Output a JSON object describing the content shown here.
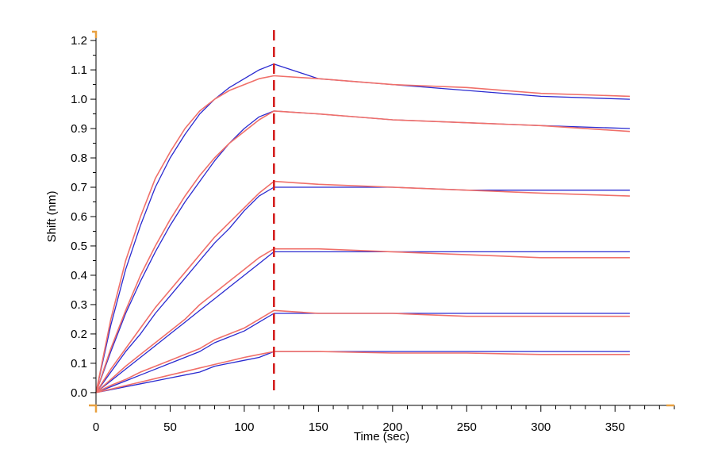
{
  "chart_data": {
    "type": "line",
    "title": "",
    "xlabel": "Time (sec)",
    "ylabel": "Shift (nm)",
    "xlim": [
      0,
      390
    ],
    "ylim": [
      -0.03,
      1.23
    ],
    "x_ticks": [
      0,
      50,
      100,
      150,
      200,
      250,
      300,
      350
    ],
    "y_ticks": [
      0.0,
      0.1,
      0.2,
      0.3,
      0.4,
      0.5,
      0.6,
      0.7,
      0.8,
      0.9,
      1.0,
      1.1,
      1.2
    ],
    "y_tick_labels": [
      "0.0",
      "0.1",
      "0.2",
      "0.3",
      "0.4",
      "0.5",
      "0.6",
      "0.7",
      "0.8",
      "0.9",
      "1.0",
      "1.1",
      "1.2"
    ],
    "grid": false,
    "legend": "none",
    "dissociation_start": 120,
    "colors": {
      "measured": "#2a2ad0",
      "fit": "#f0706a",
      "marker": "#d42020",
      "axis_corner": "#e8a040"
    },
    "series": [
      {
        "kind": "measured",
        "x": [
          0,
          10,
          20,
          30,
          40,
          50,
          60,
          70,
          80,
          90,
          100,
          110,
          120,
          150,
          200,
          250,
          300,
          360
        ],
        "y": [
          0,
          0.23,
          0.42,
          0.57,
          0.7,
          0.8,
          0.88,
          0.95,
          1.0,
          1.04,
          1.07,
          1.1,
          1.12,
          1.07,
          1.05,
          1.03,
          1.01,
          1.0
        ]
      },
      {
        "kind": "fit",
        "x": [
          0,
          10,
          20,
          30,
          40,
          50,
          60,
          70,
          80,
          90,
          100,
          110,
          120,
          150,
          200,
          250,
          300,
          360
        ],
        "y": [
          0,
          0.25,
          0.45,
          0.6,
          0.73,
          0.82,
          0.9,
          0.96,
          1.0,
          1.03,
          1.05,
          1.07,
          1.08,
          1.07,
          1.05,
          1.04,
          1.02,
          1.01
        ]
      },
      {
        "kind": "measured",
        "x": [
          0,
          10,
          20,
          30,
          40,
          50,
          60,
          70,
          80,
          90,
          100,
          110,
          120,
          150,
          200,
          250,
          300,
          360
        ],
        "y": [
          0,
          0.14,
          0.27,
          0.38,
          0.48,
          0.57,
          0.65,
          0.72,
          0.79,
          0.85,
          0.9,
          0.94,
          0.96,
          0.95,
          0.93,
          0.92,
          0.91,
          0.9
        ]
      },
      {
        "kind": "fit",
        "x": [
          0,
          10,
          20,
          30,
          40,
          50,
          60,
          70,
          80,
          90,
          100,
          110,
          120,
          150,
          200,
          250,
          300,
          360
        ],
        "y": [
          0,
          0.15,
          0.28,
          0.4,
          0.5,
          0.59,
          0.67,
          0.74,
          0.8,
          0.85,
          0.89,
          0.93,
          0.96,
          0.95,
          0.93,
          0.92,
          0.91,
          0.89
        ]
      },
      {
        "kind": "measured",
        "x": [
          0,
          10,
          20,
          30,
          40,
          50,
          60,
          70,
          80,
          90,
          100,
          110,
          120,
          150,
          200,
          250,
          300,
          360
        ],
        "y": [
          0,
          0.07,
          0.14,
          0.2,
          0.27,
          0.33,
          0.39,
          0.45,
          0.51,
          0.56,
          0.62,
          0.67,
          0.7,
          0.7,
          0.7,
          0.69,
          0.69,
          0.69
        ]
      },
      {
        "kind": "fit",
        "x": [
          0,
          10,
          20,
          30,
          40,
          50,
          60,
          70,
          80,
          90,
          100,
          110,
          120,
          150,
          200,
          250,
          300,
          360
        ],
        "y": [
          0,
          0.08,
          0.15,
          0.22,
          0.29,
          0.35,
          0.41,
          0.47,
          0.53,
          0.58,
          0.63,
          0.68,
          0.72,
          0.71,
          0.7,
          0.69,
          0.68,
          0.67
        ]
      },
      {
        "kind": "measured",
        "x": [
          0,
          10,
          20,
          30,
          40,
          50,
          60,
          70,
          80,
          90,
          100,
          110,
          120,
          150,
          200,
          250,
          300,
          360
        ],
        "y": [
          0,
          0.04,
          0.08,
          0.12,
          0.16,
          0.2,
          0.24,
          0.28,
          0.32,
          0.36,
          0.4,
          0.44,
          0.48,
          0.48,
          0.48,
          0.48,
          0.48,
          0.48
        ]
      },
      {
        "kind": "fit",
        "x": [
          0,
          10,
          20,
          30,
          40,
          50,
          60,
          70,
          80,
          90,
          100,
          110,
          120,
          150,
          200,
          250,
          300,
          360
        ],
        "y": [
          0,
          0.045,
          0.09,
          0.13,
          0.17,
          0.21,
          0.25,
          0.3,
          0.34,
          0.38,
          0.42,
          0.46,
          0.49,
          0.49,
          0.48,
          0.47,
          0.46,
          0.46
        ]
      },
      {
        "kind": "measured",
        "x": [
          0,
          10,
          20,
          30,
          40,
          50,
          60,
          70,
          80,
          90,
          100,
          110,
          120,
          150,
          200,
          250,
          300,
          360
        ],
        "y": [
          0,
          0.02,
          0.04,
          0.06,
          0.08,
          0.1,
          0.12,
          0.14,
          0.17,
          0.19,
          0.21,
          0.24,
          0.27,
          0.27,
          0.27,
          0.27,
          0.27,
          0.27
        ]
      },
      {
        "kind": "fit",
        "x": [
          0,
          10,
          20,
          30,
          40,
          50,
          60,
          70,
          80,
          90,
          100,
          110,
          120,
          150,
          200,
          250,
          300,
          360
        ],
        "y": [
          0,
          0.025,
          0.045,
          0.07,
          0.09,
          0.11,
          0.13,
          0.15,
          0.18,
          0.2,
          0.22,
          0.25,
          0.28,
          0.27,
          0.27,
          0.26,
          0.26,
          0.26
        ]
      },
      {
        "kind": "measured",
        "x": [
          0,
          10,
          20,
          30,
          40,
          50,
          60,
          70,
          80,
          90,
          100,
          110,
          120,
          150,
          200,
          250,
          300,
          360
        ],
        "y": [
          0,
          0.01,
          0.02,
          0.03,
          0.04,
          0.05,
          0.06,
          0.07,
          0.09,
          0.1,
          0.11,
          0.12,
          0.14,
          0.14,
          0.14,
          0.14,
          0.14,
          0.14
        ]
      },
      {
        "kind": "fit",
        "x": [
          0,
          10,
          20,
          30,
          40,
          50,
          60,
          70,
          80,
          90,
          100,
          110,
          120,
          150,
          200,
          250,
          300,
          360
        ],
        "y": [
          0,
          0.012,
          0.024,
          0.036,
          0.048,
          0.06,
          0.072,
          0.084,
          0.096,
          0.108,
          0.12,
          0.13,
          0.14,
          0.14,
          0.135,
          0.135,
          0.13,
          0.13
        ]
      }
    ]
  }
}
